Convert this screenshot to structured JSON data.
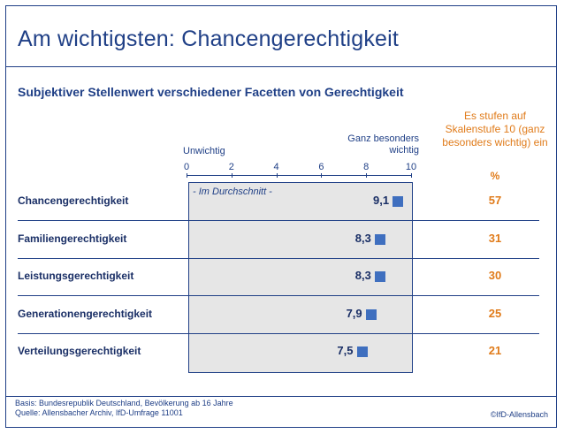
{
  "header": {
    "title": "Am wichtigsten: Chancengerechtigkeit",
    "subtitle": "Subjektiver Stellenwert verschiedener Facetten von Gerechtigkeit"
  },
  "legend": {
    "scale_low": "Unwichtig",
    "scale_high": "Ganz besonders wichtig",
    "average_label": "- Im Durchschnitt -",
    "share_heading": "Es stufen auf Skalenstufe 10 (ganz besonders wichtig) ein",
    "share_unit": "%"
  },
  "chart_data": {
    "type": "scatter",
    "categories": [
      "Chancengerechtigkeit",
      "Familiengerechtigkeit",
      "Leistungsgerechtigkeit",
      "Generationengerechtigkeit",
      "Verteilungsgerechtigkeit"
    ],
    "averages": [
      9.1,
      8.3,
      8.3,
      7.9,
      7.5
    ],
    "average_labels": [
      "9,1",
      "8,3",
      "8,3",
      "7,9",
      "7,5"
    ],
    "share_top_value_pct": [
      57,
      31,
      30,
      25,
      21
    ],
    "x_ticks": [
      "0",
      "2",
      "4",
      "6",
      "8",
      "10"
    ],
    "xlim": [
      0,
      10
    ],
    "marker_color": "#3f6fbf",
    "share_color": "#e07b1a"
  },
  "footer": {
    "basis": "Basis: Bundesrepublik Deutschland, Bevölkerung ab 16 Jahre",
    "source": "Quelle: Allensbacher Archiv, IfD-Umfrage 11001",
    "credit": "©IfD-Allensbach"
  }
}
